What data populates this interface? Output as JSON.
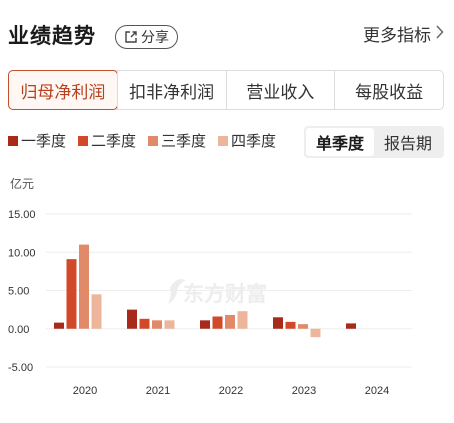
{
  "header": {
    "title": "业绩趋势",
    "share_label": "分享",
    "more_label": "更多指标"
  },
  "tabs": [
    {
      "label": "归母净利润",
      "active": true
    },
    {
      "label": "扣非净利润",
      "active": false
    },
    {
      "label": "营业收入",
      "active": false
    },
    {
      "label": "每股收益",
      "active": false
    }
  ],
  "legend": [
    {
      "label": "一季度",
      "color": "#a72a1a"
    },
    {
      "label": "二季度",
      "color": "#d2492a"
    },
    {
      "label": "三季度",
      "color": "#e08a6a"
    },
    {
      "label": "四季度",
      "color": "#edb59c"
    }
  ],
  "period_toggle": {
    "single_label": "单季度",
    "report_label": "报告期",
    "selected": "单季度"
  },
  "watermark": "东方财富",
  "chart_data": {
    "type": "bar",
    "unit": "亿元",
    "categories": [
      "2020",
      "2021",
      "2022",
      "2023",
      "2024"
    ],
    "yticks": [
      "15.00",
      "10.00",
      "5.00",
      "0.00",
      "-5.00"
    ],
    "ylim": [
      -5,
      15
    ],
    "grid": true,
    "series": [
      {
        "name": "一季度",
        "values": [
          0.8,
          2.5,
          1.1,
          1.5,
          0.7
        ]
      },
      {
        "name": "二季度",
        "values": [
          9.1,
          1.3,
          1.6,
          0.9,
          null
        ]
      },
      {
        "name": "三季度",
        "values": [
          11.0,
          1.1,
          1.8,
          0.6,
          null
        ]
      },
      {
        "name": "四季度",
        "values": [
          4.5,
          1.1,
          2.3,
          -1.1,
          null
        ]
      }
    ]
  }
}
